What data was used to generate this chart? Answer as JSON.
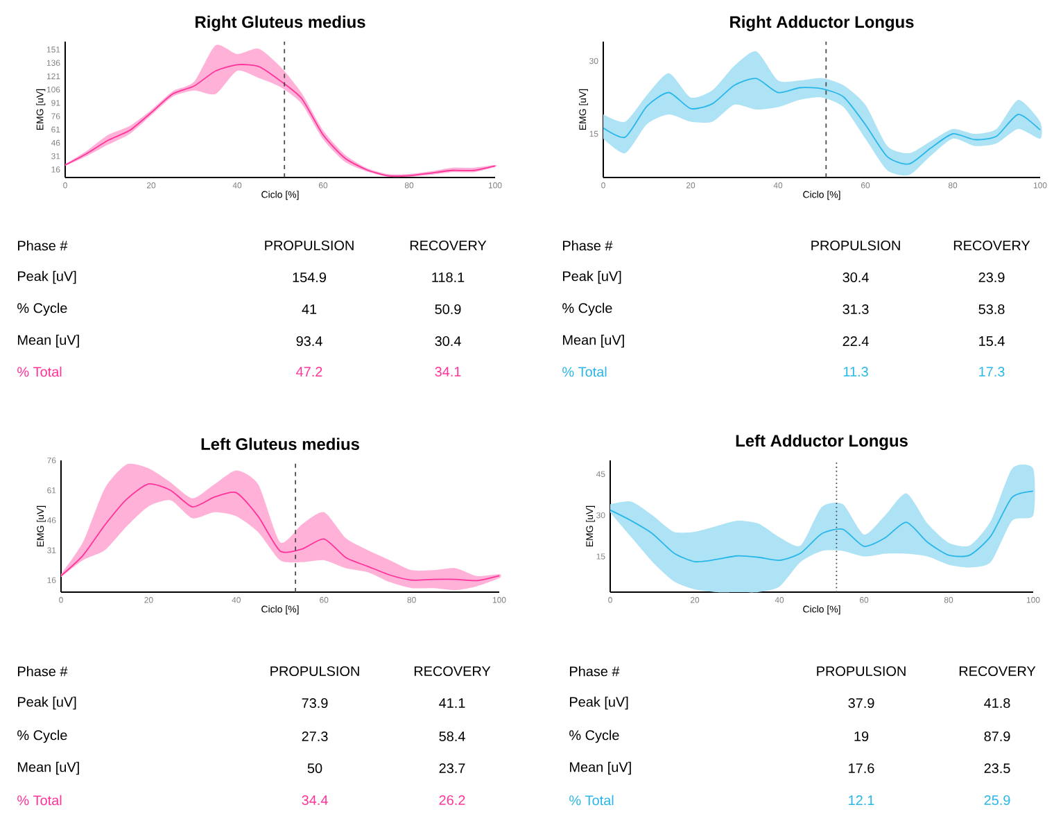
{
  "chart_data": [
    {
      "type": "line",
      "title": "Right Gluteus medius",
      "xlabel": "Ciclo [%]",
      "ylabel": "EMG [uV]",
      "x": [
        0,
        5,
        10,
        15,
        20,
        25,
        30,
        35,
        40,
        45,
        50,
        55,
        60,
        65,
        70,
        75,
        80,
        85,
        90,
        95,
        100
      ],
      "xlim": [
        0,
        100
      ],
      "xticks": [
        0,
        20,
        40,
        60,
        80,
        100
      ],
      "ylim": [
        7,
        160
      ],
      "yticks": [
        16,
        31,
        46,
        61,
        76,
        91,
        106,
        121,
        136,
        151
      ],
      "series": [
        {
          "color": "#ff3399",
          "values": [
            21,
            34,
            49,
            60,
            80,
            101,
            110,
            127,
            134,
            132,
            116,
            96,
            55,
            29,
            16,
            9,
            9,
            12,
            15,
            15,
            20
          ],
          "lower": [
            20,
            31,
            44,
            56,
            77,
            98,
            105,
            101,
            127,
            119,
            109,
            90,
            50,
            25,
            14,
            8,
            8,
            10,
            13,
            13,
            19
          ],
          "upper": [
            22,
            37,
            55,
            65,
            83,
            104,
            115,
            156,
            146,
            152,
            132,
            102,
            60,
            33,
            18,
            11,
            11,
            14,
            18,
            18,
            21
          ]
        }
      ],
      "ref_lines": [
        {
          "axis": "x",
          "value": 51,
          "line_style": "dashed"
        }
      ],
      "annotations": [
        "Phase #",
        "PROPULSION",
        "RECOVERY",
        "Peak [uV]",
        "154.9",
        "118.1",
        "% Cycle",
        "41",
        "50.9",
        "Mean [uV]",
        "93.4",
        "30.4",
        "% Total",
        "47.2",
        "34.1"
      ]
    },
    {
      "type": "line",
      "title": "Right Adductor Longus",
      "xlabel": "Ciclo [%]",
      "ylabel": "EMG [uV]",
      "x": [
        0,
        5,
        10,
        15,
        20,
        25,
        30,
        35,
        40,
        45,
        50,
        55,
        60,
        65,
        70,
        75,
        80,
        85,
        90,
        95,
        100
      ],
      "xlim": [
        0,
        100
      ],
      "xticks": [
        0,
        20,
        40,
        60,
        80,
        100
      ],
      "ylim": [
        6,
        34
      ],
      "yticks": [
        15,
        30
      ],
      "series": [
        {
          "color": "#29b6e8",
          "values": [
            16.2,
            14.3,
            20.7,
            23.5,
            20.2,
            21.2,
            25,
            26.4,
            23.5,
            24.5,
            24.3,
            22.6,
            16.9,
            10.3,
            8.8,
            12.1,
            15,
            13.8,
            14.5,
            19,
            15.8
          ],
          "lower": [
            14,
            11,
            17,
            19,
            17.5,
            17.5,
            21,
            20,
            20.5,
            22,
            22.5,
            20.5,
            14,
            7.5,
            6.5,
            10.5,
            14,
            12.5,
            13,
            16,
            14
          ],
          "upper": [
            19,
            17.5,
            23,
            27.5,
            22.5,
            24,
            29,
            32,
            26,
            26,
            26.5,
            25,
            21,
            12.5,
            11,
            13.5,
            16,
            15,
            16,
            22,
            17.5
          ]
        }
      ],
      "ref_lines": [
        {
          "axis": "x",
          "value": 51,
          "line_style": "dashed"
        }
      ],
      "annotations": [
        "Phase #",
        "PROPULSION",
        "RECOVERY",
        "Peak [uV]",
        "30.4",
        "23.9",
        "% Cycle",
        "31.3",
        "53.8",
        "Mean [uV]",
        "22.4",
        "15.4",
        "% Total",
        "11.3",
        "17.3"
      ]
    },
    {
      "type": "line",
      "title": "Left Gluteus medius",
      "xlabel": "Ciclo [%]",
      "ylabel": "EMG [uV]",
      "x": [
        0,
        5,
        10,
        15,
        20,
        25,
        30,
        35,
        40,
        45,
        50,
        55,
        60,
        65,
        70,
        75,
        80,
        85,
        90,
        95,
        100
      ],
      "xlim": [
        0,
        100
      ],
      "xticks": [
        0,
        20,
        40,
        60,
        80,
        100
      ],
      "ylim": [
        10,
        76
      ],
      "yticks": [
        16,
        31,
        46,
        61,
        76
      ],
      "series": [
        {
          "color": "#ff3399",
          "values": [
            18.2,
            28.4,
            43.6,
            56.6,
            64.2,
            61,
            52.7,
            57.6,
            59.8,
            47.9,
            30.6,
            31.6,
            36.6,
            27.3,
            22.9,
            18.6,
            16,
            16.4,
            16.4,
            15.8,
            18.2
          ],
          "lower": [
            17.5,
            26,
            31,
            43,
            53,
            56,
            47,
            50,
            48,
            40,
            26,
            25,
            26,
            22,
            20,
            15,
            12,
            12,
            11,
            13,
            17
          ],
          "upper": [
            19,
            35,
            62,
            74,
            72,
            65,
            57,
            64,
            71,
            64,
            35,
            44,
            50,
            37,
            31,
            26,
            21,
            21,
            22,
            18,
            19
          ]
        }
      ],
      "ref_lines": [
        {
          "axis": "x",
          "value": 53.5,
          "line_style": "dashed"
        }
      ],
      "annotations": [
        "Phase #",
        "PROPULSION",
        "RECOVERY",
        "Peak [uV]",
        "73.9",
        "41.1",
        "% Cycle",
        "27.3",
        "58.4",
        "Mean [uV]",
        "50",
        "23.7",
        "% Total",
        "34.4",
        "26.2"
      ]
    },
    {
      "type": "line",
      "title": "Left Adductor Longus",
      "xlabel": "Ciclo [%]",
      "ylabel": "EMG [uV]",
      "x": [
        0,
        5,
        10,
        15,
        20,
        25,
        30,
        35,
        40,
        45,
        50,
        55,
        60,
        65,
        70,
        75,
        80,
        85,
        90,
        95,
        100
      ],
      "xlim": [
        0,
        100
      ],
      "xticks": [
        0,
        20,
        40,
        60,
        80,
        100
      ],
      "ylim": [
        2,
        50
      ],
      "yticks": [
        15,
        30,
        45
      ],
      "series": [
        {
          "color": "#29b6e8",
          "values": [
            31.9,
            28,
            23.3,
            16.3,
            13.1,
            13.9,
            15.2,
            14.7,
            13.6,
            16.2,
            23.3,
            24.9,
            18.7,
            21.8,
            27.5,
            20.2,
            15.5,
            15.5,
            22.5,
            36.5,
            38.8
          ],
          "lower": [
            31,
            22,
            13,
            6,
            3,
            2,
            2,
            2,
            4,
            13,
            17,
            17,
            15,
            16,
            16,
            15,
            12,
            11,
            13,
            28,
            30
          ],
          "upper": [
            34,
            35,
            30,
            24,
            24,
            26,
            28,
            27,
            22,
            19,
            33,
            34,
            23,
            30,
            38,
            27,
            20,
            19,
            28,
            47,
            47
          ]
        }
      ],
      "ref_lines": [
        {
          "axis": "x",
          "value": 53.5,
          "line_style": "dotted"
        }
      ],
      "annotations": [
        "Phase #",
        "PROPULSION",
        "RECOVERY",
        "Peak [uV]",
        "37.9",
        "41.8",
        "% Cycle",
        "19",
        "87.9",
        "Mean [uV]",
        "17.6",
        "23.5",
        "% Total",
        "12.1",
        "25.9"
      ]
    }
  ]
}
